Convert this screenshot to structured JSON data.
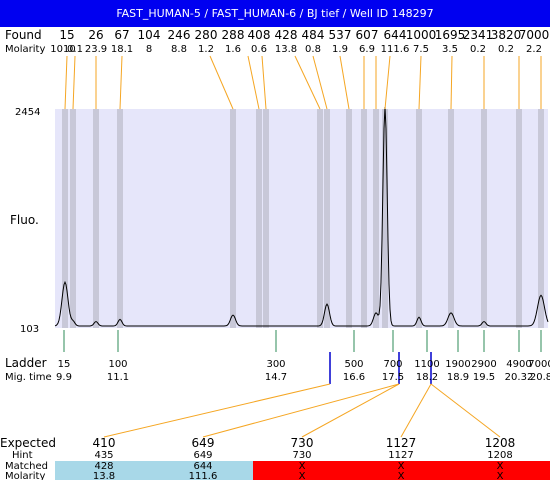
{
  "title": "FAST_HUMAN-5 / FAST_HUMAN-6 / BJ tief / Well ID 148297",
  "labels": {
    "found": "Found",
    "molarity": "Molarity",
    "fluo": "Fluo.",
    "ladder": "Ladder",
    "mig_time": "Mig. time",
    "expected": "Expected",
    "hint": "Hint",
    "matched": "Matched",
    "molarity_bottom": "Molarity",
    "y_top": "2454",
    "y_bottom": "103"
  },
  "colors": {
    "title_bg": "#0000f0",
    "plot_bg": "#e6e6fa",
    "band": "#c8c8d8",
    "connector": "#f5a623",
    "ladder_marker": "#2e8b57",
    "blue_marker": "#0000cc",
    "matched_ok": "#a8d8e8",
    "matched_fail": "#ff0000"
  },
  "chart_data": {
    "type": "line",
    "y_axis": {
      "min": 103,
      "max": 2454
    },
    "found_peaks": [
      {
        "size": "15",
        "molarity": "1010"
      },
      {
        "size": "0.1",
        "molarity": ""
      },
      {
        "size": "26",
        "molarity": "23.9"
      },
      {
        "size": "67",
        "molarity": "18.1"
      },
      {
        "size": "104",
        "molarity": "8"
      },
      {
        "size": "246",
        "molarity": "8.8"
      },
      {
        "size": "280",
        "molarity": "1.2"
      },
      {
        "size": "288",
        "molarity": "1.6"
      },
      {
        "size": "408",
        "molarity": "0.6"
      },
      {
        "size": "428",
        "molarity": "13.8"
      },
      {
        "size": "484",
        "molarity": "0.8"
      },
      {
        "size": "537",
        "molarity": "1.9"
      },
      {
        "size": "607",
        "molarity": "6.9"
      },
      {
        "size": "644",
        "molarity": "111.6"
      },
      {
        "size": "1000",
        "molarity": "7.5"
      },
      {
        "size": "1695",
        "molarity": "3.5"
      },
      {
        "size": "2341",
        "molarity": "0.2"
      },
      {
        "size": "3820",
        "molarity": "0.2"
      },
      {
        "size": "7000",
        "molarity": "2.2"
      }
    ],
    "ladder": [
      {
        "size": "15",
        "time": "9.9"
      },
      {
        "size": "100",
        "time": "11.1"
      },
      {
        "size": "300",
        "time": "14.7"
      },
      {
        "size": "500",
        "time": "16.6"
      },
      {
        "size": "700",
        "time": "17.5"
      },
      {
        "size": "1100",
        "time": "18.2"
      },
      {
        "size": "1900",
        "time": "18.9"
      },
      {
        "size": "2900",
        "time": "19.5"
      },
      {
        "size": "4900",
        "time": "20.32"
      },
      {
        "size": "7000",
        "time": "20.8"
      }
    ],
    "expected": [
      {
        "expected": "410",
        "hint": "435",
        "matched": "428",
        "molarity": "13.8",
        "ok": true
      },
      {
        "expected": "649",
        "hint": "649",
        "matched": "644",
        "molarity": "111.6",
        "ok": true
      },
      {
        "expected": "730",
        "hint": "730",
        "matched": "X",
        "molarity": "X",
        "ok": false
      },
      {
        "expected": "1127",
        "hint": "1127",
        "matched": "X",
        "molarity": "X",
        "ok": false
      },
      {
        "expected": "1208",
        "hint": "1208",
        "matched": "X",
        "molarity": "X",
        "ok": false
      }
    ]
  }
}
